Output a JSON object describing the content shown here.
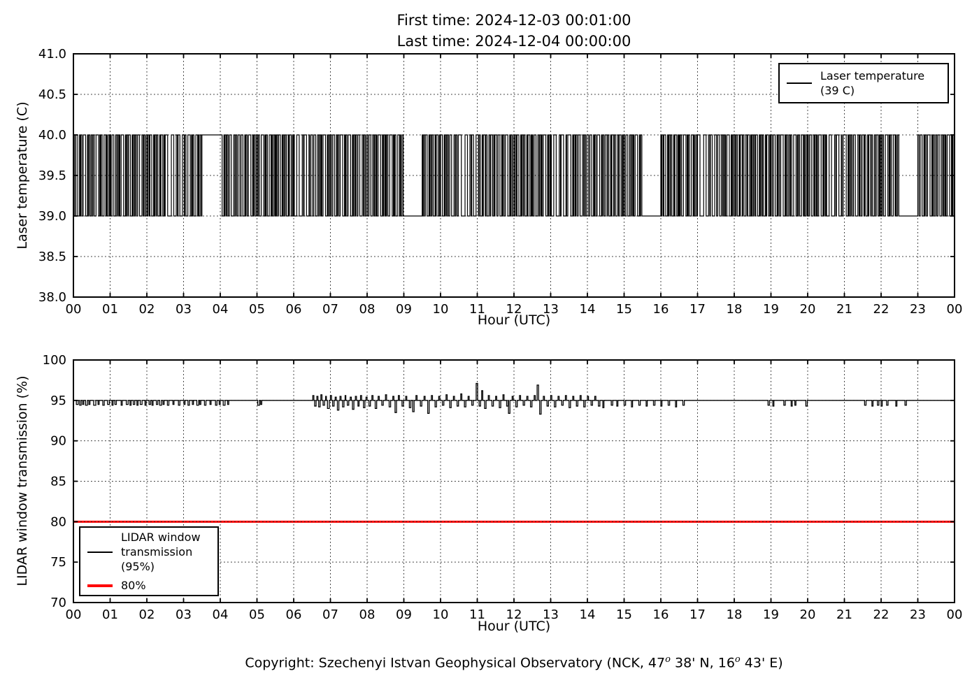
{
  "figure": {
    "title_line1": "First time: 2024-12-03 00:01:00",
    "title_line2": "Last time: 2024-12-04 00:00:00",
    "background": "#ffffff",
    "copyright": {
      "pre": "Copyright: Szechenyi Istvan Geophysical Observatory (NCK, 47",
      "sup1": "o",
      "mid": " 38' N, 16",
      "sup2": "o",
      "end": " 43' E)"
    }
  },
  "chart_data": [
    {
      "type": "line",
      "title": "",
      "xlabel": "Hour (UTC)",
      "ylabel": "Laser temperature (C)",
      "xlim": [
        0,
        24
      ],
      "ylim": [
        38,
        41
      ],
      "grid": true,
      "xtick_labels": [
        "00",
        "01",
        "02",
        "03",
        "04",
        "05",
        "06",
        "07",
        "08",
        "09",
        "10",
        "11",
        "12",
        "13",
        "14",
        "15",
        "16",
        "17",
        "18",
        "19",
        "20",
        "21",
        "22",
        "23",
        "00"
      ],
      "ytick_labels": [
        "38.0",
        "38.5",
        "39.0",
        "39.5",
        "40.0",
        "40.5",
        "41.0"
      ],
      "legend": {
        "position": "upper-right",
        "label_line1": "Laser temperature",
        "label_line2": "(39 C)",
        "color": "#000000"
      },
      "series": [
        {
          "name": "laser-temperature",
          "encoding": "minute_bits",
          "base": 39,
          "amplitude": 1,
          "color": "#000000",
          "bits_by_hour": [
            "110011100010110011110001011001101100011110010110001110100110",
            "100111000110110100111100010110111000101101100111000011011001",
            "101101110001011011000101110010111100000011110000110111000011",
            "101100011110010110001110100110111111111111111111111111111111",
            "111000101101100111000011011001110011100010110011110001011001",
            "101100011110010110001110100110101101110001011011000101110010",
            "100001111000001101111000010011100111000110110100111100010110",
            "110011100010110011110001011001111000101101100111000011011001",
            "100111000110110100111100010110101100011110010110001110100110",
            "000000000000000000000000000000101101110001011011000101110010",
            "111000101101100111000011011001111100000011110000110111000011",
            "110110001011101100011011100101110011100010110011110001011001",
            "101101110001011011000101110010100111000110110100111100010110",
            "100001111000001101111000010011111000101101100111000011011001",
            "110011100010110011110001011001110110001011101100011011100101",
            "100111000110110100111100010110000000000000000000000000000000",
            "101101110001011011000101110010101100011110010110001110100110",
            "111100000011110000110111000011100111000110110100111100010110",
            "110110001011101100011011100101101101110001011011000101110010",
            "110011100010110011110001011001101100011110010110001110100110",
            "100111000110110100111100010110100001111000001101111000010011",
            "111000101101100111000011011001110110001011101100011011100101",
            "101100011110010110001110100110000000000000000000000000000000",
            "110011100010110011110001011001100111000110110100111100010110"
          ]
        }
      ]
    },
    {
      "type": "line",
      "title": "",
      "xlabel": "Hour (UTC)",
      "ylabel": "LIDAR window transmission (%)",
      "xlim": [
        0,
        24
      ],
      "ylim": [
        70,
        100
      ],
      "grid": true,
      "xtick_labels": [
        "00",
        "01",
        "02",
        "03",
        "04",
        "05",
        "06",
        "07",
        "08",
        "09",
        "10",
        "11",
        "12",
        "13",
        "14",
        "15",
        "16",
        "17",
        "18",
        "19",
        "20",
        "21",
        "22",
        "23",
        "00"
      ],
      "ytick_labels": [
        "70",
        "75",
        "80",
        "85",
        "90",
        "95",
        "100"
      ],
      "legend": {
        "position": "lower-left",
        "item1_line1": "LIDAR window",
        "item1_line2": "transmission",
        "item1_line3": "(95%)",
        "item1_color": "#000000",
        "item2_label": "80%",
        "item2_color": "#ff0000"
      },
      "series": [
        {
          "name": "lidar-window-transmission",
          "encoding": "baseline_events",
          "baseline": 95,
          "color": "#000000",
          "events": [
            [
              0.08,
              94.5,
              0.05
            ],
            [
              0.17,
              94.4,
              0.04
            ],
            [
              0.25,
              94.5,
              0.03
            ],
            [
              0.33,
              94.4,
              0.05
            ],
            [
              0.42,
              94.5,
              0.03
            ],
            [
              0.55,
              94.4,
              0.06
            ],
            [
              0.67,
              94.5,
              0.03
            ],
            [
              0.8,
              94.4,
              0.04
            ],
            [
              0.93,
              94.5,
              0.05
            ],
            [
              1.05,
              94.4,
              0.03
            ],
            [
              1.13,
              94.5,
              0.04
            ],
            [
              1.3,
              94.4,
              0.03
            ],
            [
              1.44,
              94.5,
              0.05
            ],
            [
              1.54,
              94.4,
              0.03
            ],
            [
              1.63,
              94.5,
              0.04
            ],
            [
              1.73,
              94.4,
              0.03
            ],
            [
              1.82,
              94.5,
              0.05
            ],
            [
              1.95,
              94.4,
              0.03
            ],
            [
              2.06,
              94.5,
              0.04
            ],
            [
              2.14,
              94.4,
              0.03
            ],
            [
              2.26,
              94.5,
              0.04
            ],
            [
              2.35,
              94.4,
              0.05
            ],
            [
              2.44,
              94.5,
              0.03
            ],
            [
              2.56,
              94.4,
              0.04
            ],
            [
              2.71,
              94.5,
              0.03
            ],
            [
              2.86,
              94.4,
              0.04
            ],
            [
              3.01,
              94.5,
              0.03
            ],
            [
              3.12,
              94.4,
              0.04
            ],
            [
              3.24,
              94.5,
              0.03
            ],
            [
              3.36,
              94.4,
              0.05
            ],
            [
              3.44,
              94.5,
              0.03
            ],
            [
              3.57,
              94.4,
              0.04
            ],
            [
              3.72,
              94.5,
              0.03
            ],
            [
              3.87,
              94.4,
              0.04
            ],
            [
              3.97,
              94.5,
              0.03
            ],
            [
              4.08,
              94.4,
              0.05
            ],
            [
              4.2,
              94.5,
              0.03
            ],
            [
              5.02,
              94.4,
              0.05
            ],
            [
              5.1,
              94.5,
              0.03
            ],
            [
              6.52,
              95.6,
              0.03
            ],
            [
              6.57,
              94.3,
              0.04
            ],
            [
              6.63,
              95.5,
              0.03
            ],
            [
              6.68,
              94.2,
              0.04
            ],
            [
              6.74,
              95.7,
              0.03
            ],
            [
              6.8,
              94.4,
              0.04
            ],
            [
              6.87,
              95.5,
              0.02
            ],
            [
              6.92,
              94.0,
              0.05
            ],
            [
              7.0,
              95.6,
              0.03
            ],
            [
              7.06,
              94.3,
              0.04
            ],
            [
              7.13,
              95.4,
              0.03
            ],
            [
              7.19,
              93.8,
              0.04
            ],
            [
              7.26,
              95.5,
              0.03
            ],
            [
              7.33,
              94.2,
              0.04
            ],
            [
              7.4,
              95.6,
              0.02
            ],
            [
              7.46,
              94.4,
              0.04
            ],
            [
              7.54,
              95.4,
              0.03
            ],
            [
              7.6,
              93.9,
              0.04
            ],
            [
              7.68,
              95.5,
              0.03
            ],
            [
              7.75,
              94.3,
              0.03
            ],
            [
              7.82,
              95.6,
              0.03
            ],
            [
              7.9,
              94.1,
              0.04
            ],
            [
              7.97,
              95.4,
              0.03
            ],
            [
              8.05,
              94.3,
              0.04
            ],
            [
              8.13,
              95.6,
              0.03
            ],
            [
              8.22,
              94.0,
              0.04
            ],
            [
              8.3,
              95.5,
              0.03
            ],
            [
              8.4,
              94.4,
              0.04
            ],
            [
              8.5,
              95.7,
              0.03
            ],
            [
              8.6,
              94.2,
              0.04
            ],
            [
              8.7,
              95.5,
              0.03
            ],
            [
              8.76,
              93.5,
              0.04
            ],
            [
              8.85,
              95.6,
              0.03
            ],
            [
              8.95,
              94.3,
              0.04
            ],
            [
              9.05,
              95.5,
              0.03
            ],
            [
              9.15,
              94.1,
              0.04
            ],
            [
              9.24,
              93.6,
              0.04
            ],
            [
              9.33,
              95.6,
              0.03
            ],
            [
              9.45,
              94.3,
              0.04
            ],
            [
              9.55,
              95.5,
              0.03
            ],
            [
              9.65,
              93.4,
              0.04
            ],
            [
              9.75,
              95.6,
              0.03
            ],
            [
              9.85,
              94.2,
              0.04
            ],
            [
              9.95,
              95.5,
              0.03
            ],
            [
              10.05,
              94.4,
              0.04
            ],
            [
              10.15,
              95.7,
              0.03
            ],
            [
              10.25,
              94.1,
              0.04
            ],
            [
              10.35,
              95.5,
              0.03
            ],
            [
              10.45,
              94.3,
              0.04
            ],
            [
              10.55,
              95.8,
              0.03
            ],
            [
              10.65,
              94.2,
              0.04
            ],
            [
              10.75,
              95.5,
              0.03
            ],
            [
              10.85,
              94.4,
              0.04
            ],
            [
              10.97,
              97.1,
              0.04
            ],
            [
              11.05,
              94.3,
              0.04
            ],
            [
              11.12,
              96.2,
              0.03
            ],
            [
              11.2,
              94.0,
              0.04
            ],
            [
              11.3,
              95.6,
              0.03
            ],
            [
              11.4,
              94.3,
              0.04
            ],
            [
              11.5,
              95.5,
              0.03
            ],
            [
              11.6,
              94.1,
              0.04
            ],
            [
              11.7,
              95.7,
              0.03
            ],
            [
              11.8,
              94.3,
              0.04
            ],
            [
              11.85,
              93.4,
              0.04
            ],
            [
              11.95,
              95.5,
              0.03
            ],
            [
              12.05,
              94.2,
              0.04
            ],
            [
              12.15,
              95.6,
              0.03
            ],
            [
              12.25,
              94.4,
              0.04
            ],
            [
              12.35,
              95.5,
              0.03
            ],
            [
              12.45,
              94.2,
              0.04
            ],
            [
              12.55,
              95.6,
              0.03
            ],
            [
              12.63,
              96.9,
              0.04
            ],
            [
              12.7,
              93.3,
              0.04
            ],
            [
              12.8,
              95.5,
              0.03
            ],
            [
              12.9,
              94.3,
              0.04
            ],
            [
              13.0,
              95.6,
              0.03
            ],
            [
              13.1,
              94.2,
              0.04
            ],
            [
              13.2,
              95.5,
              0.03
            ],
            [
              13.3,
              94.4,
              0.04
            ],
            [
              13.4,
              95.6,
              0.03
            ],
            [
              13.5,
              94.1,
              0.04
            ],
            [
              13.6,
              95.5,
              0.03
            ],
            [
              13.7,
              94.3,
              0.04
            ],
            [
              13.8,
              95.6,
              0.03
            ],
            [
              13.9,
              94.2,
              0.04
            ],
            [
              14.0,
              95.5,
              0.03
            ],
            [
              14.1,
              94.4,
              0.04
            ],
            [
              14.2,
              95.5,
              0.03
            ],
            [
              14.3,
              94.3,
              0.04
            ],
            [
              14.42,
              94.1,
              0.03
            ],
            [
              14.65,
              94.4,
              0.04
            ],
            [
              14.8,
              94.3,
              0.03
            ],
            [
              15.0,
              94.4,
              0.04
            ],
            [
              15.2,
              94.2,
              0.03
            ],
            [
              15.4,
              94.4,
              0.04
            ],
            [
              15.6,
              94.3,
              0.03
            ],
            [
              15.8,
              94.4,
              0.04
            ],
            [
              16.0,
              94.3,
              0.03
            ],
            [
              16.2,
              94.4,
              0.04
            ],
            [
              16.4,
              94.2,
              0.03
            ],
            [
              16.6,
              94.4,
              0.04
            ],
            [
              18.92,
              94.4,
              0.04
            ],
            [
              19.05,
              94.3,
              0.03
            ],
            [
              19.35,
              94.4,
              0.04
            ],
            [
              19.55,
              94.3,
              0.03
            ],
            [
              19.65,
              94.4,
              0.03
            ],
            [
              19.95,
              94.3,
              0.04
            ],
            [
              21.55,
              94.4,
              0.04
            ],
            [
              21.75,
              94.3,
              0.03
            ],
            [
              21.9,
              94.4,
              0.04
            ],
            [
              22.0,
              94.3,
              0.03
            ],
            [
              22.15,
              94.4,
              0.04
            ],
            [
              22.4,
              94.3,
              0.03
            ],
            [
              22.65,
              94.4,
              0.04
            ]
          ]
        },
        {
          "name": "threshold-80",
          "encoding": "hline",
          "y": 80,
          "color": "#ff0000",
          "linewidth": 3
        }
      ]
    }
  ]
}
